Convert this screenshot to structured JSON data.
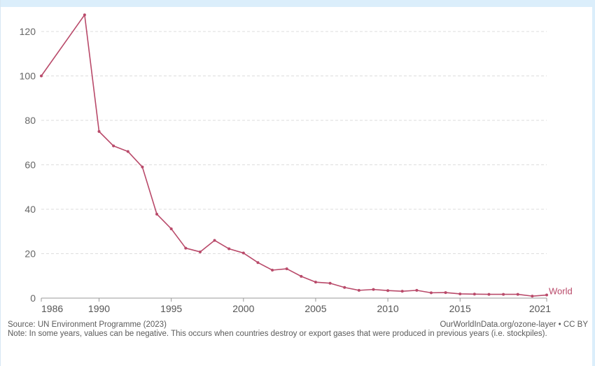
{
  "chart_data": {
    "type": "line",
    "title": "",
    "xlabel": "",
    "ylabel": "",
    "xlim": [
      1986,
      2021
    ],
    "ylim": [
      0,
      130
    ],
    "x_ticks": [
      "1986",
      "1990",
      "1995",
      "2000",
      "2005",
      "2010",
      "2015",
      "2021"
    ],
    "y_ticks": [
      "0",
      "20",
      "40",
      "60",
      "80",
      "100",
      "120"
    ],
    "grid": "horizontal dashed",
    "series": [
      {
        "name": "World",
        "color": "#b94a6a",
        "x": [
          1986,
          1989,
          1990,
          1991,
          1992,
          1993,
          1994,
          1995,
          1996,
          1997,
          1998,
          1999,
          2000,
          2001,
          2002,
          2003,
          2004,
          2005,
          2006,
          2007,
          2008,
          2009,
          2010,
          2011,
          2012,
          2013,
          2014,
          2015,
          2016,
          2017,
          2018,
          2019,
          2020,
          2021
        ],
        "values": [
          100,
          127.5,
          75,
          68.5,
          66,
          59,
          37.8,
          31.2,
          22.5,
          20.8,
          26,
          22.2,
          20.3,
          16,
          12.6,
          13.2,
          9.8,
          7.2,
          6.7,
          4.8,
          3.5,
          3.9,
          3.4,
          3.1,
          3.5,
          2.4,
          2.5,
          1.9,
          1.8,
          1.7,
          1.7,
          1.7,
          0.9,
          1.4
        ]
      }
    ]
  },
  "footer": {
    "source": "Source: UN Environment Programme (2023)",
    "attribution": "OurWorldInData.org/ozone-layer • CC BY",
    "note": "Note: In some years, values can be negative. This occurs when countries destroy or export gases that were produced in previous years (i.e. stockpiles)."
  }
}
